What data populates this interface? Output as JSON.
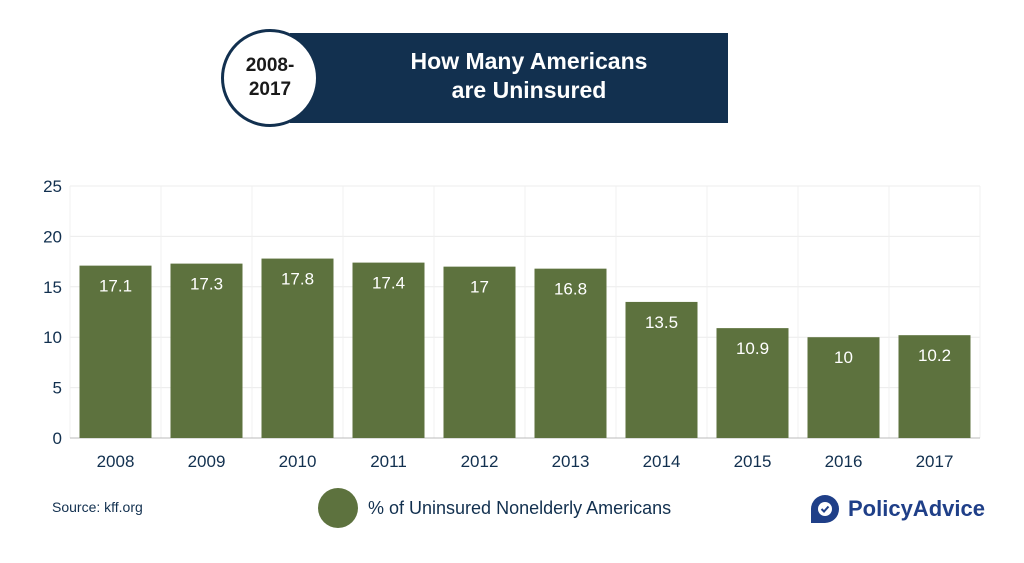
{
  "header": {
    "years": [
      "2008-",
      "2017"
    ],
    "title": [
      "How Many Americans",
      "are Uninsured"
    ]
  },
  "source": "Source: kff.org",
  "brand": "PolicyAdvice",
  "colors": {
    "bar": "#5d723e",
    "navy": "#12304f",
    "brand": "#1f3f88"
  },
  "chart_data": {
    "type": "bar",
    "title": "How Many Americans are Uninsured",
    "categories": [
      "2008",
      "2009",
      "2010",
      "2011",
      "2012",
      "2013",
      "2014",
      "2015",
      "2016",
      "2017"
    ],
    "series": [
      {
        "name": "% of Uninsured Nonelderly Americans",
        "values": [
          17.1,
          17.3,
          17.8,
          17.4,
          17,
          16.8,
          13.5,
          10.9,
          10,
          10.2
        ]
      }
    ],
    "data_labels": [
      "17.1",
      "17.3",
      "17.8",
      "17.4",
      "17",
      "16.8",
      "13.5",
      "10.9",
      "10",
      "10.2"
    ],
    "yticks": [
      "0",
      "5",
      "10",
      "15",
      "20",
      "25"
    ],
    "ylim": [
      0,
      25
    ],
    "grid": true,
    "legend": "bottom-center",
    "xlabel": "",
    "ylabel": ""
  }
}
